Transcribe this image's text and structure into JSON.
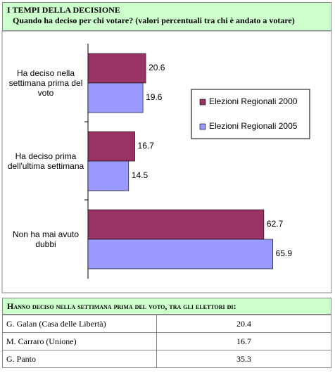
{
  "chart_data": {
    "type": "bar",
    "orientation": "horizontal",
    "title": "I TEMPI DELLA DECISIONE",
    "subtitle": "Quando ha deciso per chi votare? (valori percentuali tra chi è andato a votare)",
    "categories": [
      "Ha deciso nella settimana prima del voto",
      "Ha deciso prima dell'ultima settimana",
      "Non ha mai avuto dubbi"
    ],
    "series": [
      {
        "name": "Elezioni Regionali 2000",
        "color": "#993366",
        "values": [
          20.6,
          16.7,
          62.7
        ]
      },
      {
        "name": "Elezioni Regionali 2005",
        "color": "#9999ff",
        "values": [
          19.6,
          14.5,
          65.9
        ]
      }
    ],
    "xlim": [
      0,
      70
    ],
    "legend": "right"
  },
  "table": {
    "title": "Hanno deciso nella settimana prima del voto, tra gli elettori di:",
    "rows": [
      [
        "G. Galan (Casa delle Libertà)",
        "20.4"
      ],
      [
        "M. Carraro (Unione)",
        "16.7"
      ],
      [
        "G. Panto",
        "35.3"
      ]
    ]
  }
}
